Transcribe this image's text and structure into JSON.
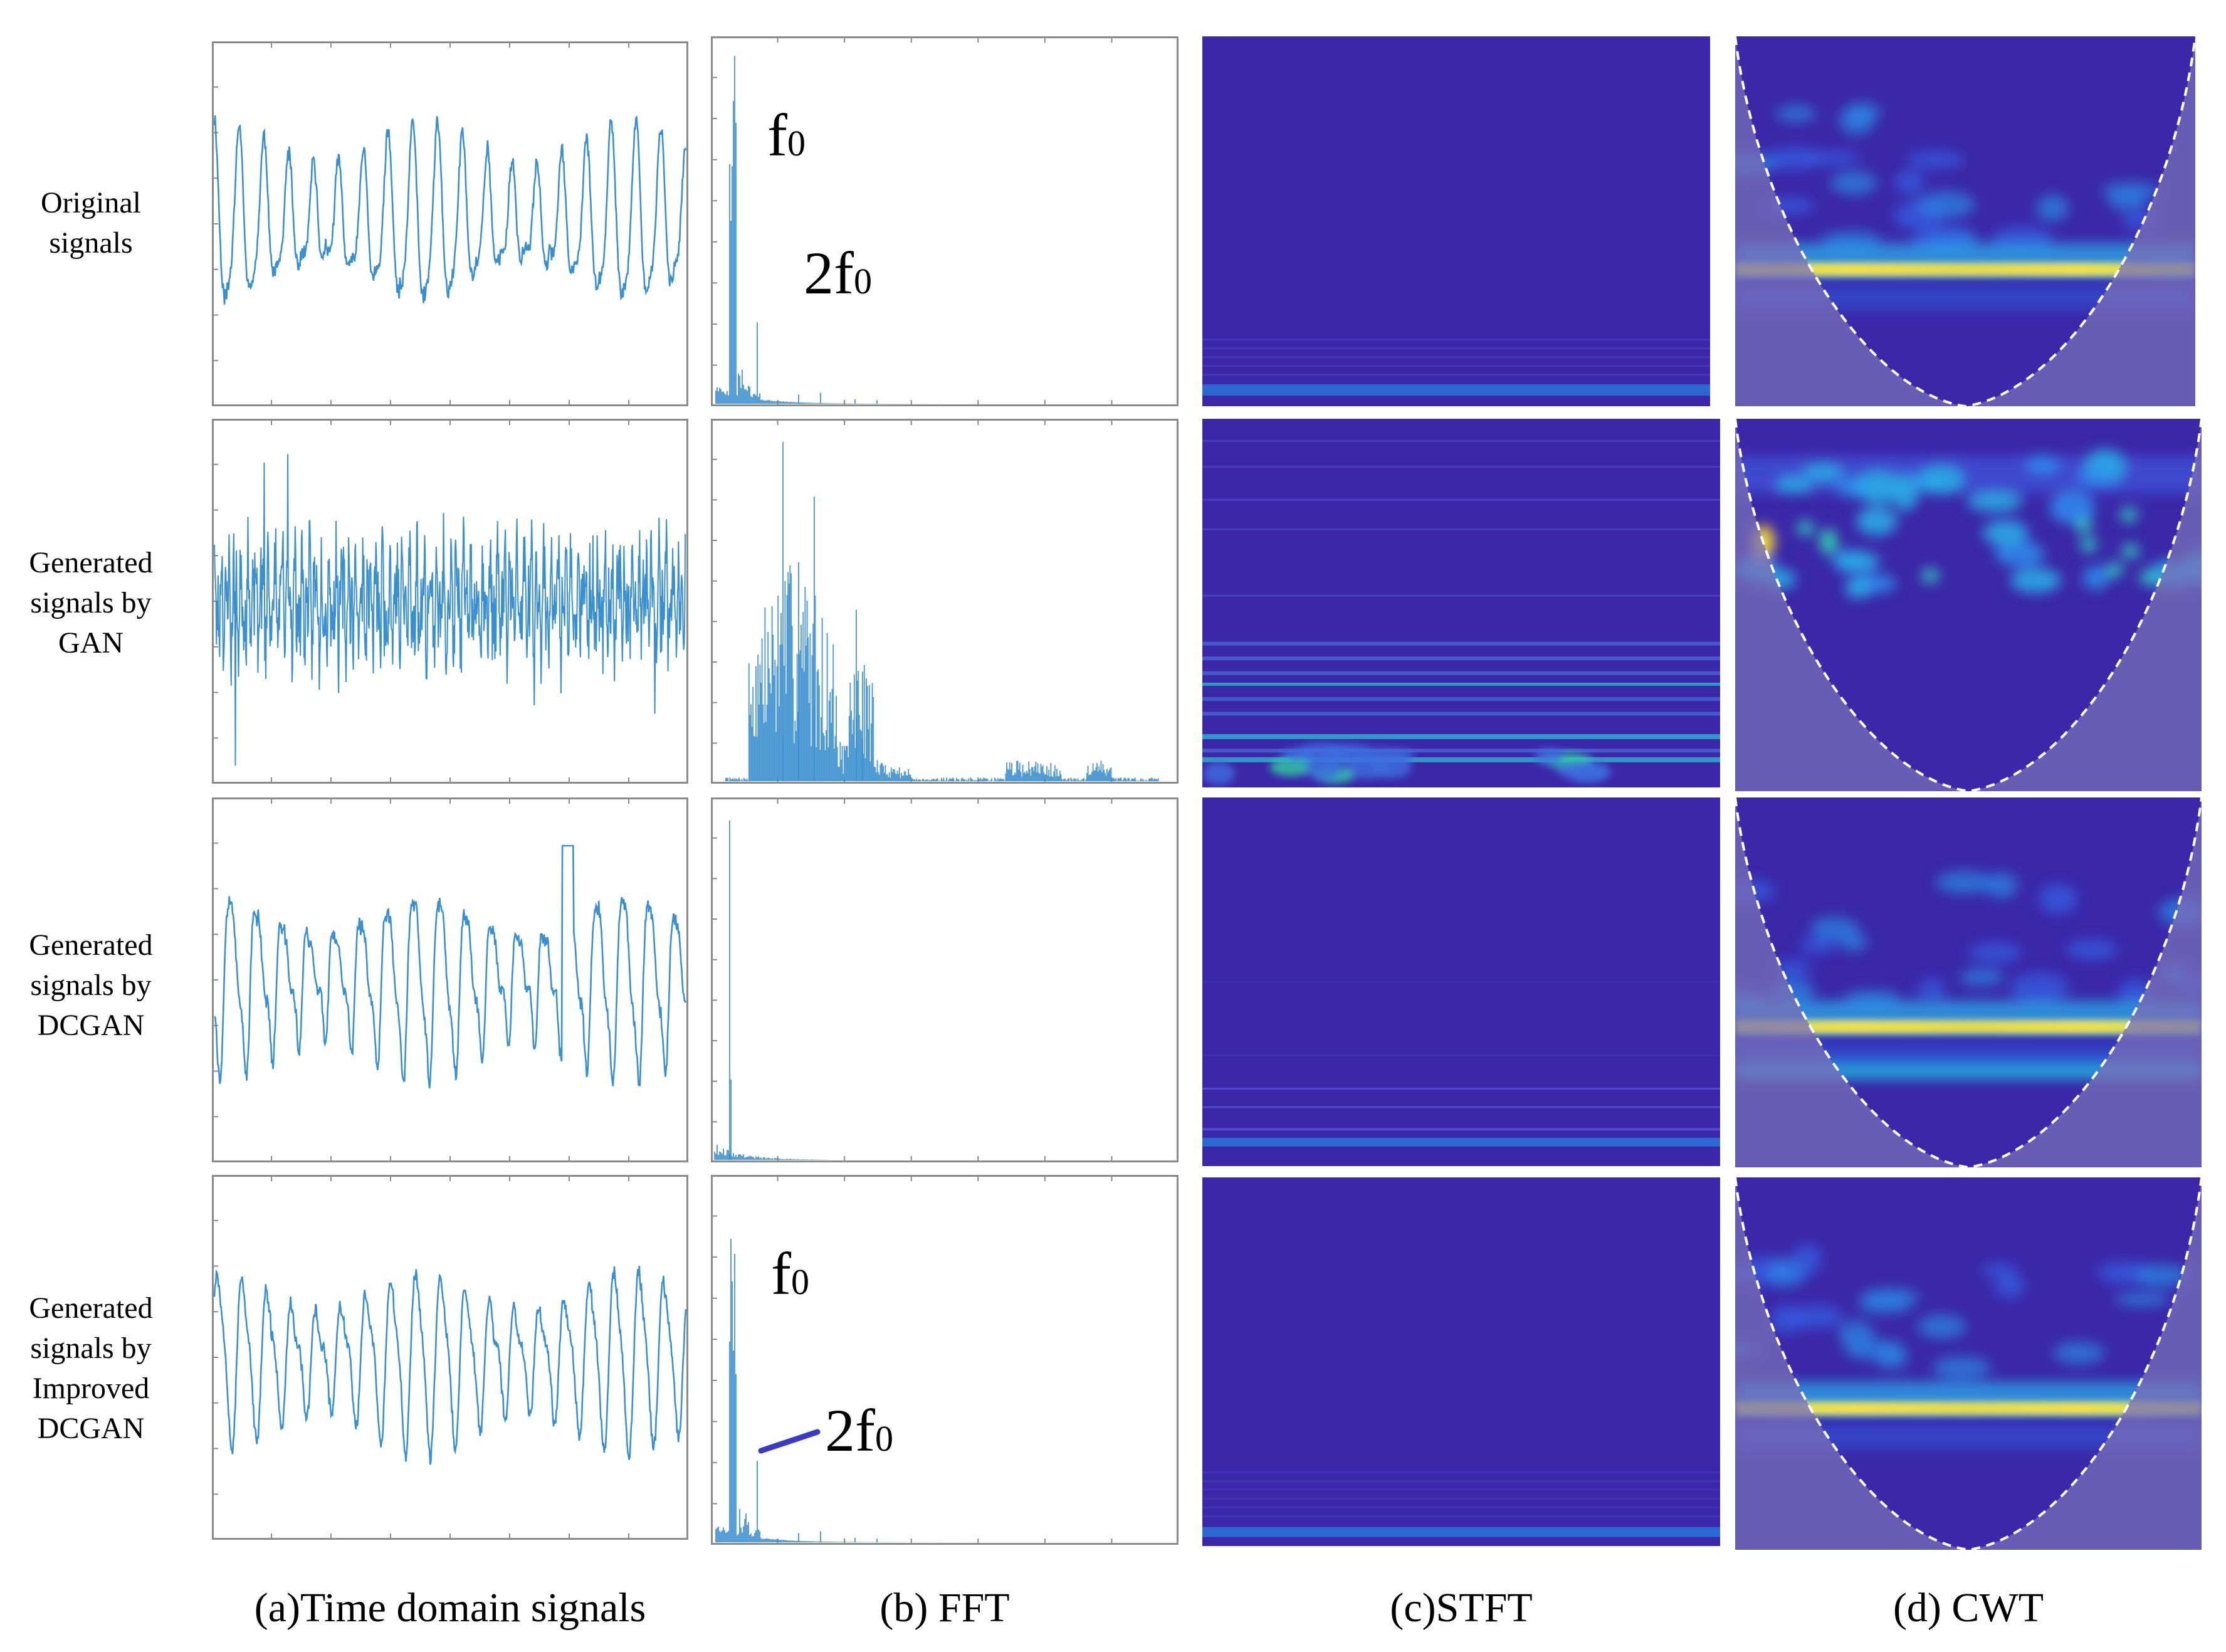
{
  "rows": [
    {
      "lines": [
        "Original",
        "signals"
      ]
    },
    {
      "lines": [
        "Generated",
        "signals by",
        "GAN"
      ]
    },
    {
      "lines": [
        "Generated",
        "signals by",
        "DCGAN"
      ]
    },
    {
      "lines": [
        "Generated",
        "signals by",
        "Improved",
        "DCGAN"
      ]
    }
  ],
  "columns": [
    {
      "label": "(a)Time domain signals"
    },
    {
      "label": "(b) FFT"
    },
    {
      "label": "(c)STFT"
    },
    {
      "label": "(d) CWT"
    }
  ],
  "fft_annotations": {
    "row0": [
      "f",
      "2f"
    ],
    "row3": [
      "f",
      "2f"
    ],
    "subscript": "0"
  },
  "colors": {
    "signal": "#3a8fd0",
    "fft": "#3a8fd0",
    "heatmap_bg": "#3b27a8",
    "ridge_yellow": "#f3d93a",
    "cone_shade": "#7a6fb8",
    "arrow": "#3a3ac8"
  }
}
